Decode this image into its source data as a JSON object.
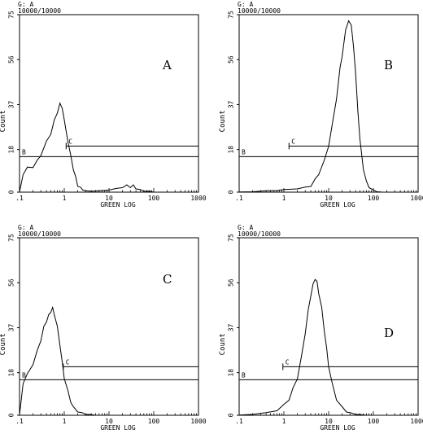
{
  "chart_data": [
    {
      "type": "line",
      "gate_label": "G: A",
      "event_count": "10000/10000",
      "panel_letter": "A",
      "xlabel": "GREEN LOG",
      "ylabel": "Count",
      "xscale": "log",
      "xlim": [
        0.1,
        1000
      ],
      "ylim": [
        0,
        75
      ],
      "x_ticks": [
        ".1",
        "1",
        "10",
        "100",
        "1000"
      ],
      "y_ticks": [
        "0",
        "18",
        "37",
        "56",
        "75"
      ],
      "series": [
        {
          "x": [
            0.1,
            0.12,
            0.15,
            0.2,
            0.25,
            0.3,
            0.4,
            0.5,
            0.6,
            0.7,
            0.8,
            0.9,
            1.0,
            1.2,
            1.4,
            1.6,
            1.8,
            2.0,
            2.3,
            2.6,
            3,
            4,
            6,
            10,
            15,
            20,
            25,
            30,
            35,
            40,
            50,
            60,
            80,
            100
          ],
          "y": [
            0,
            8,
            10,
            11,
            13,
            16,
            21,
            25,
            30,
            34,
            37,
            36,
            30,
            22,
            15,
            10,
            6,
            3,
            2,
            1,
            0.5,
            0.5,
            0.5,
            1,
            1.5,
            2,
            2.5,
            2,
            2.5,
            1.5,
            1,
            0.5,
            0.3,
            0
          ]
        }
      ],
      "markers": [
        {
          "label": "B",
          "x_start": 0.1,
          "x_end": 1000,
          "y": 15
        },
        {
          "label": "C",
          "x_start": 1.1,
          "x_end": 1000,
          "y": 19.5
        }
      ]
    },
    {
      "type": "line",
      "gate_label": "G: A",
      "event_count": "10000/10000",
      "panel_letter": "B",
      "xlabel": "GREEN LOG",
      "ylabel": "Count",
      "xscale": "log",
      "xlim": [
        0.1,
        1000
      ],
      "ylim": [
        0,
        75
      ],
      "x_ticks": [
        ".1",
        "1",
        "10",
        "100",
        "1000"
      ],
      "y_ticks": [
        "0",
        "18",
        "37",
        "56",
        "75"
      ],
      "series": [
        {
          "x": [
            0.1,
            0.2,
            0.4,
            0.7,
            1,
            2,
            3,
            4,
            5,
            6,
            8,
            10,
            12,
            15,
            18,
            20,
            24,
            28,
            32,
            36,
            40,
            45,
            50,
            60,
            70,
            80,
            100,
            120,
            150
          ],
          "y": [
            0,
            0.3,
            0.5,
            0.8,
            1,
            1.5,
            2,
            3,
            5,
            8,
            13,
            20,
            28,
            40,
            52,
            58,
            68,
            73,
            70,
            62,
            50,
            35,
            22,
            10,
            4,
            2,
            0.8,
            0.3,
            0
          ]
        }
      ],
      "markers": [
        {
          "label": "B",
          "x_start": 0.1,
          "x_end": 1000,
          "y": 15
        },
        {
          "label": "C",
          "x_start": 1.3,
          "x_end": 1000,
          "y": 19.5
        }
      ]
    },
    {
      "type": "line",
      "gate_label": "G: A",
      "event_count": "10000/10000",
      "panel_letter": "C",
      "xlabel": "GREEN LOG",
      "ylabel": "Count",
      "xscale": "log",
      "xlim": [
        0.1,
        1000
      ],
      "ylim": [
        0,
        75
      ],
      "x_ticks": [
        ".1",
        "1",
        "10",
        "100",
        "1000"
      ],
      "y_ticks": [
        "0",
        "18",
        "37",
        "56",
        "75"
      ],
      "series": [
        {
          "x": [
            0.1,
            0.12,
            0.15,
            0.2,
            0.25,
            0.3,
            0.35,
            0.4,
            0.45,
            0.5,
            0.55,
            0.6,
            0.7,
            0.8,
            0.9,
            1.0,
            1.2,
            1.4,
            1.6,
            2.0,
            2.5,
            3,
            4,
            5
          ],
          "y": [
            0,
            14,
            17,
            22,
            27,
            32,
            37,
            40,
            42,
            44,
            45,
            43,
            37,
            30,
            22,
            16,
            10,
            6,
            3,
            1.5,
            1,
            0.5,
            0.2,
            0
          ]
        }
      ],
      "markers": [
        {
          "label": "B",
          "x_start": 0.1,
          "x_end": 1000,
          "y": 15
        },
        {
          "label": "C",
          "x_start": 0.95,
          "x_end": 1000,
          "y": 20.5
        }
      ]
    },
    {
      "type": "line",
      "gate_label": "G: A",
      "event_count": "10000/10000",
      "panel_letter": "D",
      "xlabel": "GREEN LOG",
      "ylabel": "Count",
      "xscale": "log",
      "xlim": [
        0.1,
        1000
      ],
      "ylim": [
        0,
        75
      ],
      "x_ticks": [
        ".1",
        "1",
        "10",
        "100",
        "1000"
      ],
      "y_ticks": [
        "0",
        "18",
        "37",
        "56",
        "75"
      ],
      "series": [
        {
          "x": [
            0.1,
            0.2,
            0.4,
            0.7,
            1,
            1.3,
            1.6,
            2,
            2.5,
            3,
            3.5,
            4,
            4.5,
            5,
            5.5,
            6,
            7,
            8,
            9,
            10,
            12,
            15,
            20,
            25,
            30,
            40,
            50,
            70
          ],
          "y": [
            0,
            0.5,
            1,
            2,
            4,
            7,
            11,
            16,
            25,
            35,
            44,
            51,
            55,
            58,
            56,
            52,
            45,
            36,
            28,
            21,
            13,
            7,
            3,
            1.5,
            1,
            0.5,
            0.2,
            0
          ]
        }
      ],
      "markers": [
        {
          "label": "B",
          "x_start": 0.1,
          "x_end": 1000,
          "y": 15
        },
        {
          "label": "C",
          "x_start": 0.95,
          "x_end": 1000,
          "y": 20.5
        }
      ]
    }
  ]
}
